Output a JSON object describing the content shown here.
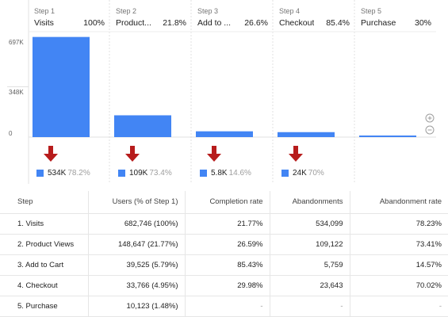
{
  "chart_data": {
    "type": "bar",
    "steps": [
      {
        "step_label": "Step 1",
        "name": "Visits",
        "display_name": "Visits",
        "conversion_pct": "100%",
        "users": 682746
      },
      {
        "step_label": "Step 2",
        "name": "Product Views",
        "display_name": "Product...",
        "conversion_pct": "21.8%",
        "users": 148647
      },
      {
        "step_label": "Step 3",
        "name": "Add to Cart",
        "display_name": "Add to ...",
        "conversion_pct": "26.6%",
        "users": 39525
      },
      {
        "step_label": "Step 4",
        "name": "Checkout",
        "display_name": "Checkout",
        "conversion_pct": "85.4%",
        "users": 33766
      },
      {
        "step_label": "Step 5",
        "name": "Purchase",
        "display_name": "Purchase",
        "conversion_pct": "30%",
        "users": 10123
      }
    ],
    "y_ticks": [
      "697K",
      "348K",
      "0"
    ],
    "ylim": [
      0,
      697000
    ],
    "dropoffs": [
      {
        "value": "534K",
        "rate": "78.2%"
      },
      {
        "value": "109K",
        "rate": "73.4%"
      },
      {
        "value": "5.8K",
        "rate": "14.6%"
      },
      {
        "value": "24K",
        "rate": "70%"
      }
    ],
    "bar_color": "#4285f4",
    "arrow_color": "#b71c1c"
  },
  "table": {
    "headers": [
      "Step",
      "Users (% of Step 1)",
      "Completion rate",
      "Abandonments",
      "Abandonment rate"
    ],
    "rows": [
      [
        "1. Visits",
        "682,746 (100%)",
        "21.77%",
        "534,099",
        "78.23%"
      ],
      [
        "2. Product Views",
        "148,647 (21.77%)",
        "26.59%",
        "109,122",
        "73.41%"
      ],
      [
        "3. Add to Cart",
        "39,525 (5.79%)",
        "85.43%",
        "5,759",
        "14.57%"
      ],
      [
        "4. Checkout",
        "33,766 (4.95%)",
        "29.98%",
        "23,643",
        "70.02%"
      ],
      [
        "5. Purchase",
        "10,123 (1.48%)",
        "-",
        "-",
        "-"
      ]
    ]
  },
  "controls": {
    "zoom_in_icon": "plus-circle-icon",
    "zoom_out_icon": "minus-circle-icon"
  }
}
